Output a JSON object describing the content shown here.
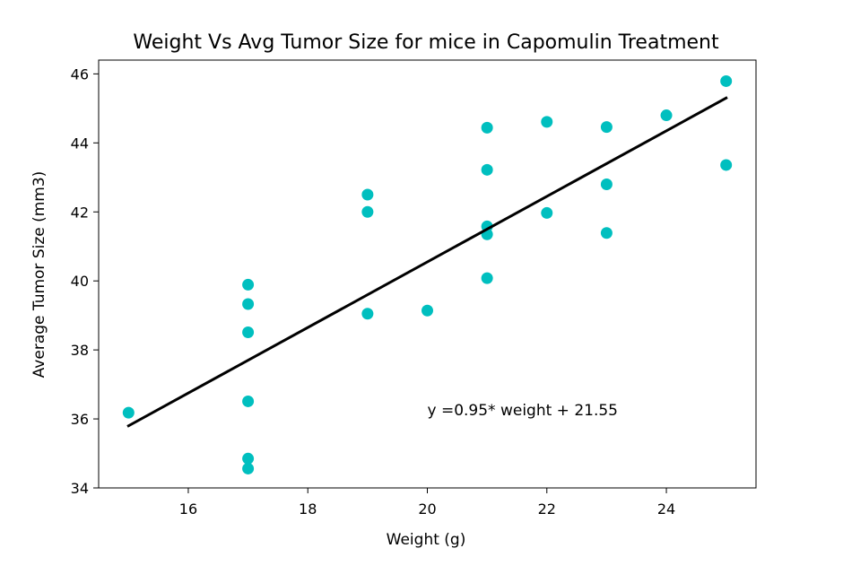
{
  "chart_data": {
    "type": "scatter",
    "title": "Weight Vs Avg Tumor Size for mice in Capomulin Treatment",
    "xlabel": "Weight (g)",
    "ylabel": "Average Tumor Size (mm3)",
    "xlim": [
      14.5,
      25.5
    ],
    "ylim": [
      34,
      46.4
    ],
    "xticks": [
      16,
      18,
      20,
      22,
      24
    ],
    "yticks": [
      34,
      36,
      38,
      40,
      42,
      44,
      46
    ],
    "grid": false,
    "legend": "none",
    "marker_color": "#00BFBF",
    "line_color": "#000000",
    "points": [
      {
        "x": 15,
        "y": 36.18
      },
      {
        "x": 17,
        "y": 34.56
      },
      {
        "x": 17,
        "y": 34.85
      },
      {
        "x": 17,
        "y": 36.51
      },
      {
        "x": 17,
        "y": 38.51
      },
      {
        "x": 17,
        "y": 39.33
      },
      {
        "x": 17,
        "y": 39.89
      },
      {
        "x": 19,
        "y": 39.05
      },
      {
        "x": 19,
        "y": 42.0
      },
      {
        "x": 19,
        "y": 42.5
      },
      {
        "x": 20,
        "y": 39.14
      },
      {
        "x": 21,
        "y": 40.08
      },
      {
        "x": 21,
        "y": 41.35
      },
      {
        "x": 21,
        "y": 41.58
      },
      {
        "x": 21,
        "y": 43.22
      },
      {
        "x": 21,
        "y": 44.44
      },
      {
        "x": 22,
        "y": 41.97
      },
      {
        "x": 22,
        "y": 44.61
      },
      {
        "x": 23,
        "y": 41.39
      },
      {
        "x": 23,
        "y": 42.8
      },
      {
        "x": 23,
        "y": 44.46
      },
      {
        "x": 24,
        "y": 44.8
      },
      {
        "x": 25,
        "y": 43.36
      },
      {
        "x": 25,
        "y": 45.79
      }
    ],
    "regression": {
      "slope": 0.95,
      "intercept": 21.55,
      "x_range": [
        15,
        25
      ],
      "equation_label": "y =0.95* weight + 21.55",
      "label_at": {
        "x": 20,
        "y": 36.1
      }
    }
  }
}
